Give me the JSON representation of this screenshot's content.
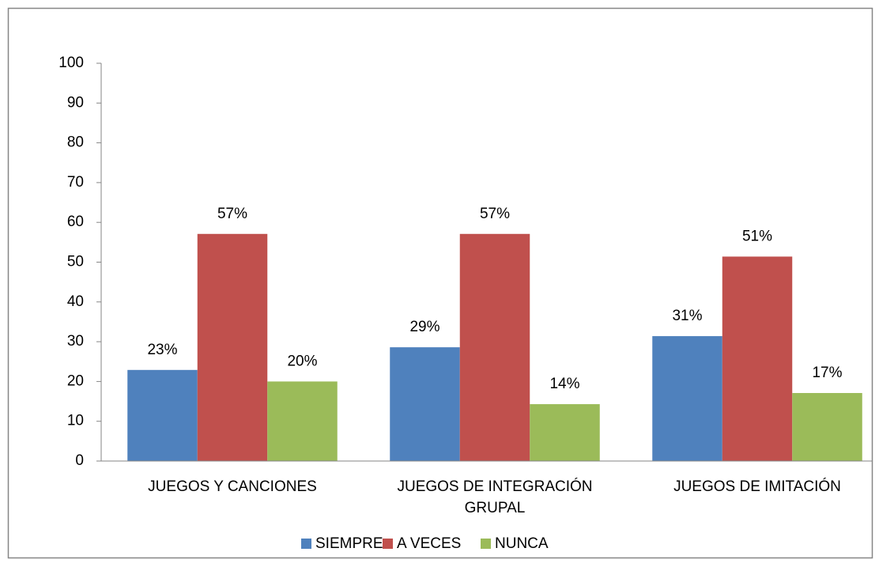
{
  "chart_data": {
    "type": "bar",
    "categories": [
      "JUEGOS Y CANCIONES",
      "JUEGOS DE INTEGRACIÓN GRUPAL",
      "JUEGOS DE IMITACIÓN"
    ],
    "series": [
      {
        "name": "SIEMPRE",
        "color": "#4f81bd",
        "values": [
          22.9,
          28.6,
          31.4
        ],
        "value_labels": [
          "23%",
          "29%",
          "31%"
        ]
      },
      {
        "name": "A VECES",
        "color": "#c0504d",
        "values": [
          57.1,
          57.1,
          51.4
        ],
        "value_labels": [
          "57%",
          "57%",
          "51%"
        ]
      },
      {
        "name": "NUNCA",
        "color": "#9bbb59",
        "values": [
          20,
          14.3,
          17.1
        ],
        "value_labels": [
          "20%",
          "14%",
          "17%"
        ]
      }
    ],
    "ylim": [
      0,
      100
    ],
    "yticks": [
      0,
      10,
      20,
      30,
      40,
      50,
      60,
      70,
      80,
      90,
      100
    ],
    "grid": false,
    "legend": "bottom"
  }
}
